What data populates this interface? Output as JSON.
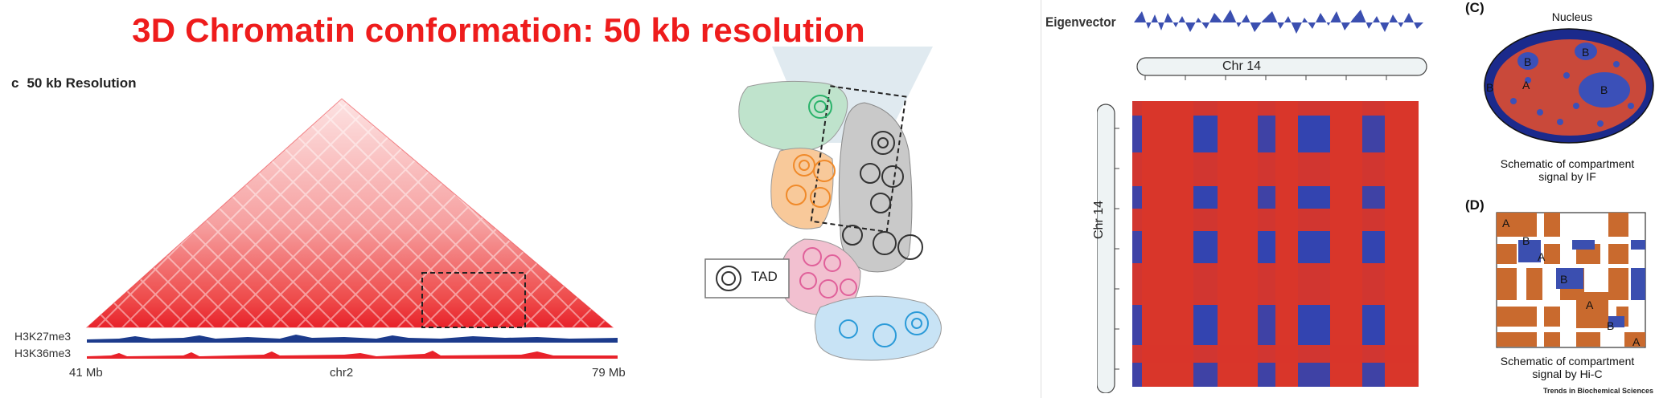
{
  "slide": {
    "title": "3D Chromatin conformation: 50 kb resolution"
  },
  "panel_c": {
    "letter": "c",
    "title": "50 kb Resolution",
    "tracks": [
      "H3K27me3",
      "H3K36me3"
    ],
    "axis": {
      "start": "41 Mb",
      "chrom": "chr2",
      "end": "79 Mb"
    }
  },
  "tad_diagram": {
    "legend_label": "TAD"
  },
  "eigen_panel": {
    "eigen_label": "Eigenvector",
    "chrom_top": "Chr 14",
    "chrom_left": "Chr 14"
  },
  "panel_C_right": {
    "letter": "(C)",
    "nucleus_label": "Nucleus",
    "label_A": "A",
    "label_B": "B",
    "caption_line1": "Schematic of compartment",
    "caption_line2": "signal by IF"
  },
  "panel_D_right": {
    "letter": "(D)",
    "diag_labels": [
      "A",
      "B",
      "A",
      "B",
      "A",
      "B",
      "A"
    ],
    "caption_line1": "Schematic of compartment",
    "caption_line2": "signal by Hi-C"
  },
  "journal": "Trends in Biochemical Sciences",
  "colors": {
    "title_red": "#ee1c1c",
    "heat_red": "#e8222a",
    "compartment_blue": "#3b4fb0",
    "compartment_red": "#cc4a34",
    "hic_orange": "#c96a2e"
  }
}
